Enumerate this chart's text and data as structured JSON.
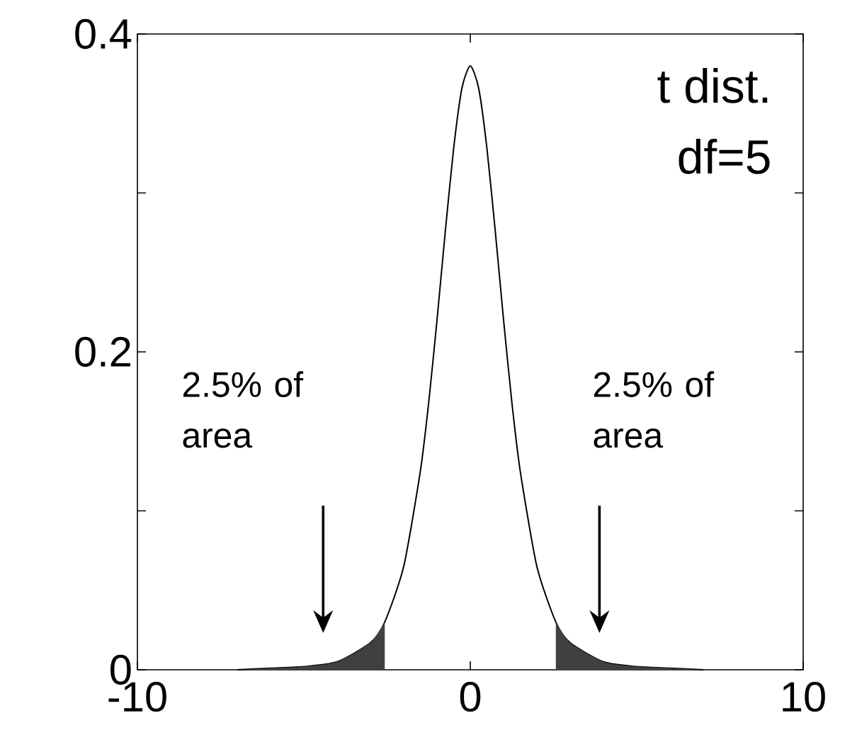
{
  "chart_data": {
    "type": "line",
    "x": [
      -7,
      -6,
      -5,
      -4,
      -3,
      -2.57,
      -2,
      -1.5,
      -1.25,
      -1,
      -0.75,
      -0.5,
      -0.25,
      0,
      0.25,
      0.5,
      0.75,
      1,
      1.25,
      1.5,
      2,
      2.57,
      3,
      4,
      5,
      6,
      7
    ],
    "series": [
      {
        "color": "#000000",
        "values": [
          0,
          0.001,
          0.002,
          0.005,
          0.017,
          0.03,
          0.065,
          0.125,
          0.168,
          0.22,
          0.276,
          0.328,
          0.366,
          0.38,
          0.366,
          0.328,
          0.276,
          0.22,
          0.168,
          0.125,
          0.065,
          0.03,
          0.017,
          0.005,
          0.002,
          0.001,
          0
        ]
      },
      {
        "type": "area",
        "color": "#404040",
        "x": [
          -7,
          -6,
          -5,
          -4,
          -3,
          -2.57
        ],
        "values": [
          0,
          0.001,
          0.002,
          0.005,
          0.017,
          0.03
        ]
      },
      {
        "type": "area",
        "color": "#404040",
        "x": [
          2.57,
          3,
          4,
          5,
          6,
          7
        ],
        "values": [
          0.03,
          0.017,
          0.005,
          0.002,
          0.001,
          0
        ]
      }
    ],
    "xlim": [
      -10,
      10
    ],
    "ylim": [
      0,
      0.4
    ],
    "xticks": [
      -10,
      0,
      10
    ],
    "yticks": [
      {
        "value": 0,
        "label": "0"
      },
      {
        "value": 0.1,
        "label": null
      },
      0.2,
      {
        "value": 0.3,
        "label": null
      },
      0.4
    ],
    "annotations": [
      "t dist.",
      "df=5",
      "2.5% of area",
      "2.5% of area"
    ],
    "grid": false,
    "marker": "none",
    "line_style": "solid"
  }
}
